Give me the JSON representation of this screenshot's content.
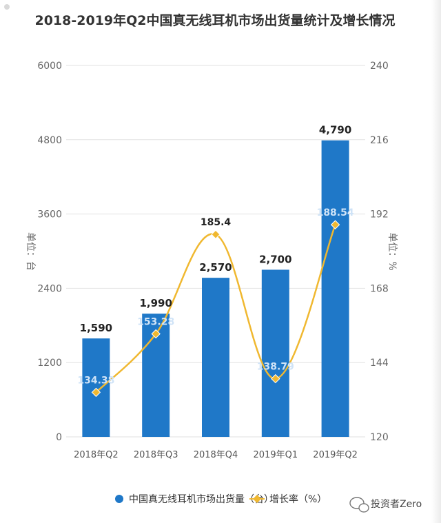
{
  "chart_data": {
    "type": "bar",
    "title": "2018-2019年Q2中国真无线耳机市场出货量统计及增长情况",
    "categories": [
      "2018年Q2",
      "2018年Q3",
      "2018年Q4",
      "2019年Q1",
      "2019年Q2"
    ],
    "series": [
      {
        "name": "中国真无线耳机市场出货量（台）",
        "type": "bar",
        "axis": "left",
        "values": [
          1590,
          1990,
          2570,
          2700,
          4790
        ],
        "labels": [
          "1,590",
          "1,990",
          "2,570",
          "2,700",
          "4,790"
        ],
        "color": "#1f78c8"
      },
      {
        "name": "增长率（%）",
        "type": "line",
        "axis": "right",
        "values": [
          134.38,
          153.28,
          185.4,
          138.79,
          188.54
        ],
        "labels": [
          "134.38",
          "153.28",
          "185.4",
          "138.79",
          "188.54"
        ],
        "color": "#f0b830"
      }
    ],
    "ylabel": "单位：台",
    "y2label": "单位：%",
    "ylim": [
      0,
      6000
    ],
    "y2lim": [
      120,
      240
    ],
    "yticks": [
      "0",
      "1200",
      "2400",
      "3600",
      "4800",
      "6000"
    ],
    "y2ticks": [
      "120",
      "144",
      "168",
      "192",
      "216",
      "240"
    ],
    "grid": true,
    "legend_position": "bottom"
  },
  "watermark_brand": "投资者Zero",
  "colors": {
    "bar": "#1f78c8",
    "line": "#f0b830",
    "grid": "#e2e2e2",
    "title": "#333333"
  }
}
